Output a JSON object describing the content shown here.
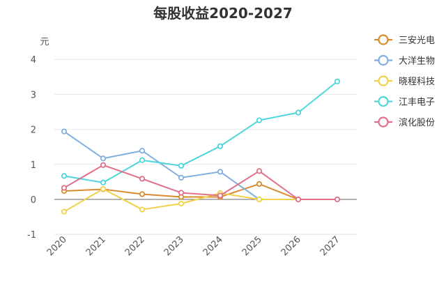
{
  "chart_data": {
    "type": "line",
    "title": "每股收益2020-2027",
    "y_unit": "元",
    "x": [
      "2020",
      "2021",
      "2022",
      "2023",
      "2024",
      "2025",
      "2026",
      "2027"
    ],
    "ylim": [
      -1,
      4
    ],
    "yticks": [
      "-1",
      "0",
      "1",
      "2",
      "3",
      "4"
    ],
    "grid": true,
    "legend_position": "right",
    "series": [
      {
        "name": "三安光电",
        "color": "#d98a2e",
        "values": [
          0.24,
          0.29,
          0.15,
          0.07,
          0.07,
          0.44,
          0.0,
          null
        ]
      },
      {
        "name": "大洋生物",
        "color": "#7fb0e0",
        "values": [
          1.94,
          1.17,
          1.39,
          0.62,
          0.79,
          0.0,
          null,
          null
        ]
      },
      {
        "name": "晓程科技",
        "color": "#f2d04a",
        "values": [
          -0.35,
          0.3,
          -0.29,
          -0.12,
          0.18,
          0.0,
          0.0,
          null
        ]
      },
      {
        "name": "江丰电子",
        "color": "#4fd6dc",
        "values": [
          0.67,
          0.48,
          1.12,
          0.96,
          1.52,
          2.26,
          2.48,
          3.37
        ]
      },
      {
        "name": "滨化股份",
        "color": "#e07088",
        "values": [
          0.33,
          0.98,
          0.59,
          0.19,
          0.11,
          0.81,
          0.0,
          0.0
        ]
      }
    ]
  }
}
